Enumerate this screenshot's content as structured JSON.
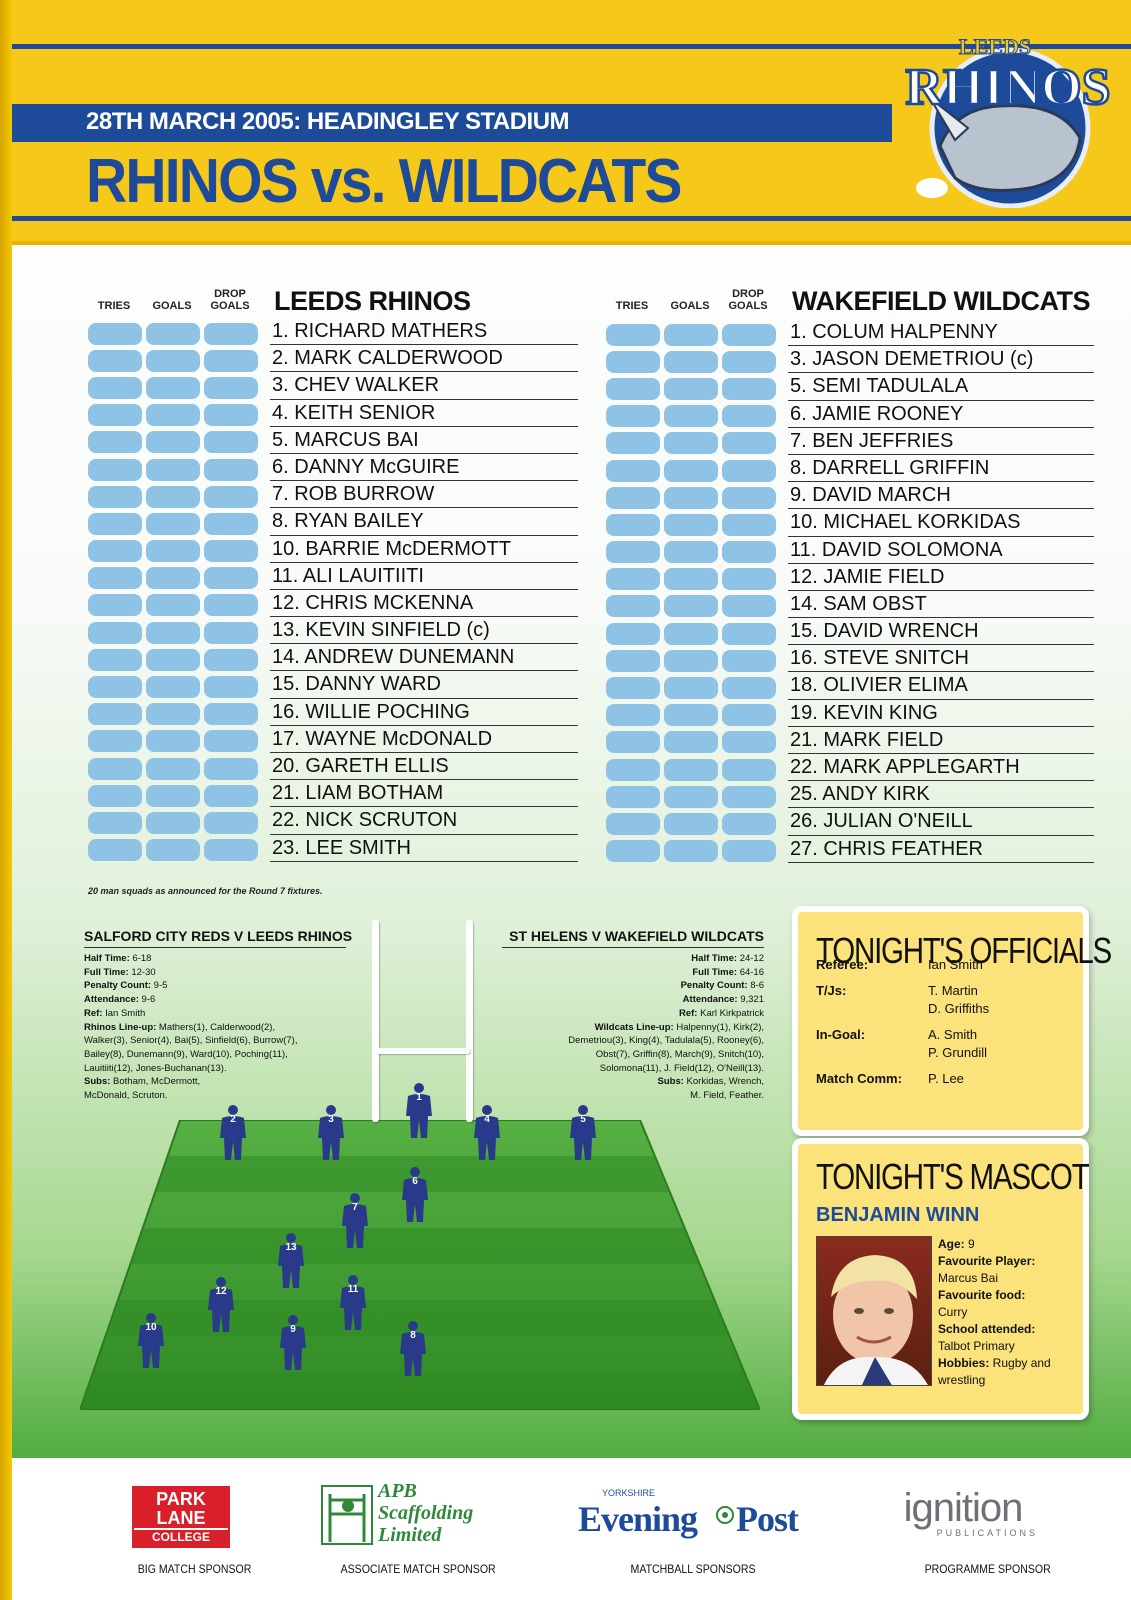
{
  "header": {
    "date_venue": "28TH MARCH 2005: HEADINGLEY STADIUM",
    "title": "RHINOS vs. WILDCATS",
    "logo": {
      "top": "LEEDS",
      "main": "RHINOS"
    }
  },
  "columns": {
    "tries": "TRIES",
    "goals": "GOALS",
    "drop1": "DROP",
    "drop2": "GOALS"
  },
  "home": {
    "name": "LEEDS RHINOS",
    "players": [
      "1. RICHARD MATHERS",
      "2. MARK CALDERWOOD",
      "3. CHEV WALKER",
      "4. KEITH SENIOR",
      "5. MARCUS BAI",
      "6. DANNY McGUIRE",
      "7. ROB BURROW",
      "8. RYAN BAILEY",
      "10. BARRIE McDERMOTT",
      "11. ALI LAUITIITI",
      "12. CHRIS MCKENNA",
      "13. KEVIN SINFIELD (c)",
      "14. ANDREW DUNEMANN",
      "15. DANNY WARD",
      "16. WILLIE POCHING",
      "17. WAYNE McDONALD",
      "20. GARETH ELLIS",
      "21. LIAM BOTHAM",
      "22. NICK SCRUTON",
      "23. LEE SMITH"
    ]
  },
  "away": {
    "name": "WAKEFIELD WILDCATS",
    "players": [
      "1. COLUM HALPENNY",
      "3. JASON DEMETRIOU (c)",
      "5. SEMI TADULALA",
      "6. JAMIE ROONEY",
      "7. BEN JEFFRIES",
      "8. DARRELL GRIFFIN",
      "9. DAVID MARCH",
      "10. MICHAEL KORKIDAS",
      "11. DAVID SOLOMONA",
      "12. JAMIE FIELD",
      "14. SAM OBST",
      "15. DAVID WRENCH",
      "16. STEVE SNITCH",
      "18. OLIVIER ELIMA",
      "19. KEVIN KING",
      "21. MARK FIELD",
      "22. MARK APPLEGARTH",
      "25. ANDY KIRK",
      "26. JULIAN O'NEILL",
      "27. CHRIS FEATHER"
    ]
  },
  "squad_note": "20 man squads as announced for the Round 7 fixtures.",
  "result_left": {
    "title": "SALFORD CITY REDS V LEEDS RHINOS",
    "lines": [
      [
        "Half Time:",
        " 6-18"
      ],
      [
        "Full Time:",
        " 12-30"
      ],
      [
        "Penalty Count:",
        " 9-5"
      ],
      [
        "Attendance:",
        " 9-6"
      ],
      [
        "Ref:",
        " Ian Smith"
      ],
      [
        "Rhinos Line-up:",
        " Mathers(1), Calderwood(2),"
      ],
      [
        "",
        "Walker(3), Senior(4), Bai(5), Sinfield(6), Burrow(7),"
      ],
      [
        "",
        "Bailey(8), Dunemann(9), Ward(10), Poching(11),"
      ],
      [
        "",
        "Lauitiiti(12), Jones-Buchanan(13)."
      ],
      [
        "Subs:",
        " Botham, McDermott,"
      ],
      [
        "",
        "McDonald, Scruton."
      ]
    ]
  },
  "result_right": {
    "title": "ST HELENS V WAKEFIELD WILDCATS",
    "lines": [
      [
        "Half Time:",
        " 24-12"
      ],
      [
        "Full Time:",
        " 64-16"
      ],
      [
        "Penalty Count:",
        " 8-6"
      ],
      [
        "Attendance:",
        " 9,321"
      ],
      [
        "Ref:",
        " Karl Kirkpatrick"
      ],
      [
        "Wildcats Line-up:",
        " Halpenny(1), Kirk(2),"
      ],
      [
        "",
        "Demetriou(3), King(4), Tadulala(5), Rooney(6),"
      ],
      [
        "",
        "Obst(7), Griffin(8), March(9), Snitch(10),"
      ],
      [
        "",
        "Solomona(11), J. Field(12), O'Neill(13)."
      ],
      [
        "Subs:",
        " Korkidas, Wrench,"
      ],
      [
        "",
        "M. Field, Feather."
      ]
    ]
  },
  "pitch_numbers": [
    "1",
    "2",
    "3",
    "4",
    "5",
    "6",
    "7",
    "8",
    "9",
    "10",
    "11",
    "12",
    "13"
  ],
  "officials": {
    "title": "TONIGHT'S OFFICIALS",
    "rows": [
      {
        "label": "Referee:",
        "value": "Ian Smith",
        "value2": ""
      },
      {
        "label": "T/Js:",
        "value": "T. Martin",
        "value2": "D. Griffiths"
      },
      {
        "label": "In-Goal:",
        "value": "A. Smith",
        "value2": "P. Grundill"
      },
      {
        "label": "Match Comm:",
        "value": "P. Lee",
        "value2": ""
      }
    ]
  },
  "mascot": {
    "title": "TONIGHT'S MASCOT",
    "name": "BENJAMIN WINN",
    "age_label": "Age:",
    "age": " 9",
    "player_label": "Favourite Player:",
    "player": "Marcus Bai",
    "food_label": "Favourite food:",
    "food": "Curry",
    "school_label": "School attended:",
    "school": "Talbot Primary",
    "hobbies_label": "Hobbies:",
    "hobbies": " Rugby and",
    "hobbies2": "wrestling"
  },
  "sponsors": [
    {
      "logo1": "PARK",
      "logo2": "LANE",
      "logo3": "COLLEGE",
      "caption": "BIG MATCH SPONSOR"
    },
    {
      "logo1": "APB",
      "logo2": "Scaffolding",
      "logo3": "Limited",
      "caption": "ASSOCIATE MATCH SPONSOR"
    },
    {
      "logo1": "YORKSHIRE",
      "logo2": "Evening",
      "logo3": "Post",
      "caption": "MATCHBALL SPONSORS"
    },
    {
      "logo1": "ignition",
      "logo2": "PUBLICATIONS",
      "logo3": "",
      "caption": "PROGRAMME SPONSOR"
    }
  ],
  "colors": {
    "blue": "#1d4b9a",
    "yellow": "#f6c81a",
    "pill": "#8ec3e6",
    "pitch": "#3f9a2e"
  }
}
